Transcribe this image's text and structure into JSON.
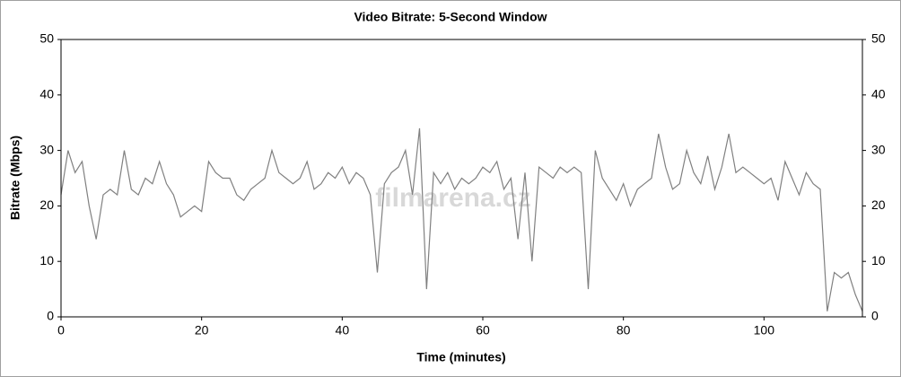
{
  "chart_data": {
    "type": "line",
    "title": "Video Bitrate: 5-Second Window",
    "x_label": "Time (minutes)",
    "y_label": "Bitrate (Mbps)",
    "watermark": "filmarena.cz",
    "xlim": [
      0,
      114
    ],
    "xticks": [
      0,
      20,
      40,
      60,
      80,
      100
    ],
    "ylim": [
      0,
      50
    ],
    "yticks": [
      0,
      10,
      20,
      30,
      40,
      50
    ],
    "y2lim": [
      0,
      50
    ],
    "y2ticks": [
      0,
      10,
      20,
      30,
      40,
      50
    ],
    "grid": false,
    "x": [
      0,
      1,
      2,
      3,
      4,
      5,
      6,
      7,
      8,
      9,
      10,
      11,
      12,
      13,
      14,
      15,
      16,
      17,
      18,
      19,
      20,
      21,
      22,
      23,
      24,
      25,
      26,
      27,
      28,
      29,
      30,
      31,
      32,
      33,
      34,
      35,
      36,
      37,
      38,
      39,
      40,
      41,
      42,
      43,
      44,
      45,
      46,
      47,
      48,
      49,
      50,
      51,
      52,
      53,
      54,
      55,
      56,
      57,
      58,
      59,
      60,
      61,
      62,
      63,
      64,
      65,
      66,
      67,
      68,
      69,
      70,
      71,
      72,
      73,
      74,
      75,
      76,
      77,
      78,
      79,
      80,
      81,
      82,
      83,
      84,
      85,
      86,
      87,
      88,
      89,
      90,
      91,
      92,
      93,
      94,
      95,
      96,
      97,
      98,
      99,
      100,
      101,
      102,
      103,
      104,
      105,
      106,
      107,
      108,
      109,
      110,
      111,
      112,
      113,
      114
    ],
    "series": [
      {
        "name": "Bitrate",
        "color": "#808080",
        "values": [
          22,
          30,
          26,
          28,
          20,
          14,
          22,
          23,
          22,
          30,
          23,
          22,
          25,
          24,
          28,
          24,
          22,
          18,
          19,
          20,
          19,
          28,
          26,
          25,
          25,
          22,
          21,
          23,
          24,
          25,
          30,
          26,
          25,
          24,
          25,
          28,
          23,
          24,
          26,
          25,
          27,
          24,
          26,
          25,
          22,
          8,
          24,
          26,
          27,
          30,
          22,
          34,
          5,
          26,
          24,
          26,
          23,
          25,
          24,
          25,
          27,
          26,
          28,
          23,
          25,
          14,
          26,
          10,
          27,
          26,
          25,
          27,
          26,
          27,
          26,
          5,
          30,
          25,
          23,
          21,
          24,
          20,
          23,
          24,
          25,
          33,
          27,
          23,
          24,
          30,
          26,
          24,
          29,
          23,
          27,
          33,
          26,
          27,
          26,
          25,
          24,
          25,
          21,
          28,
          25,
          22,
          26,
          24,
          23,
          1,
          8,
          7,
          8,
          4,
          1
        ]
      }
    ]
  }
}
